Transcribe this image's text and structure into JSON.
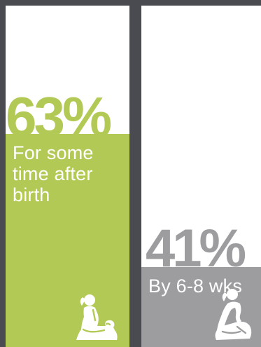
{
  "colors": {
    "frame": "#4a4b50",
    "panel": "#ffffff",
    "icon": "#ffffff"
  },
  "chart_data": {
    "type": "bar",
    "categories": [
      "For some time after birth",
      "By 6-8 wks"
    ],
    "values": [
      63,
      41
    ],
    "unit": "%",
    "ylim": [
      0,
      100
    ],
    "grid": false,
    "legend": "none",
    "bars": [
      {
        "value": 63,
        "value_label": "63%",
        "caption": "For some time after birth",
        "color": "#b2ca55",
        "icon": "breastfeeding-mother-icon"
      },
      {
        "value": 41,
        "value_label": "41%",
        "caption": "By 6-8 wks",
        "color": "#9d9c9f",
        "icon": "breastfeeding-mother-icon"
      }
    ]
  }
}
